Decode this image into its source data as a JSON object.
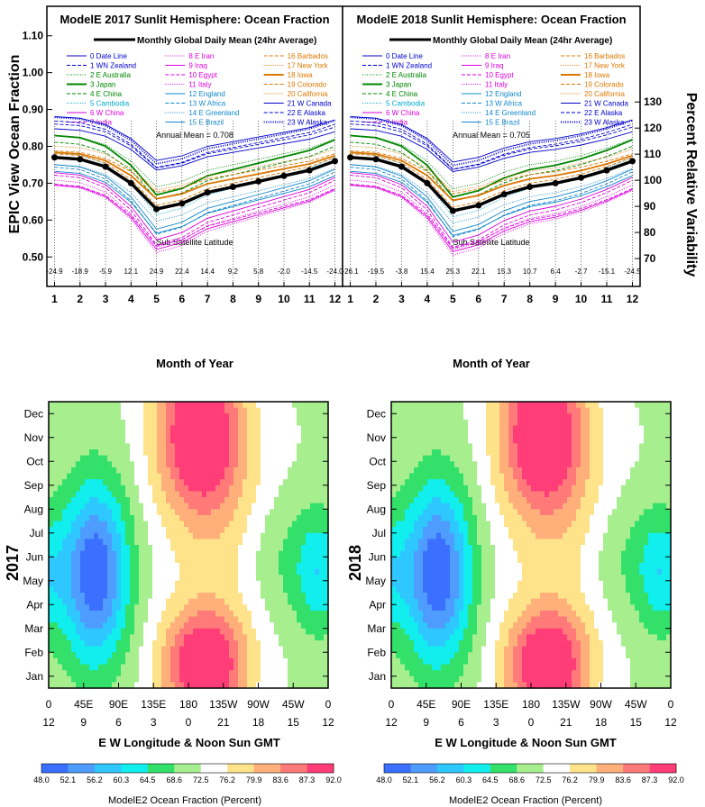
{
  "chart_data": [
    {
      "type": "line",
      "title": "ModelE 2017 Sunlit Hemisphere: Ocean Fraction",
      "subtitle": "Monthly Global Daily Mean (24hr Average)",
      "xlabel": "Month of Year",
      "ylabel": "EPIC View Ocean Fraction",
      "xlim": [
        0.7,
        12.3
      ],
      "ylim": [
        0.42,
        1.18
      ],
      "yticks": [
        "1.10",
        "1.00",
        "0.90",
        "0.80",
        "0.70",
        "0.60",
        "0.50"
      ],
      "xticks": [
        "1",
        "2",
        "3",
        "4",
        "5",
        "6",
        "7",
        "8",
        "9",
        "10",
        "11",
        "12"
      ],
      "annual_mean_label": "Annual Mean = 0.708",
      "subsat_label": "Sub Satellite Latitude",
      "subsat_values": [
        "-24.9",
        "-18.9",
        "-5.9",
        "12.1",
        "24.9",
        "22.4",
        "14.4",
        "9.2",
        "5.8",
        "-2.0",
        "-14.5",
        "-24.0"
      ],
      "global_mean": [
        0.77,
        0.765,
        0.745,
        0.7,
        0.63,
        0.645,
        0.675,
        0.69,
        0.705,
        0.72,
        0.735,
        0.76
      ]
    },
    {
      "type": "line",
      "title": "ModelE 2018 Sunlit Hemisphere: Ocean Fraction",
      "subtitle": "Monthly Global Daily Mean (24hr Average)",
      "xlabel": "Month of Year",
      "ylabel2": "Percent Relative Variability",
      "xlim": [
        0.7,
        12.3
      ],
      "y2ticks": [
        "130",
        "120",
        "110",
        "100",
        "90",
        "80",
        "70"
      ],
      "xticks": [
        "1",
        "2",
        "3",
        "4",
        "5",
        "6",
        "7",
        "8",
        "9",
        "10",
        "11",
        "12"
      ],
      "annual_mean_label": "Annual Mean = 0.705",
      "subsat_label": "Sub Satellite Latitude",
      "subsat_values": [
        "-26.1",
        "-19.5",
        "-3.8",
        "15.4",
        "25.3",
        "22.1",
        "15.3",
        "10.7",
        "6.4",
        "-2.7",
        "-15.1",
        "-24.5"
      ],
      "global_mean": [
        0.77,
        0.765,
        0.745,
        0.7,
        0.625,
        0.64,
        0.67,
        0.69,
        0.7,
        0.715,
        0.735,
        0.76
      ]
    },
    {
      "type": "heatmap",
      "year_label": "2017",
      "xlabel": "E W Longitude   &   Noon Sun GMT",
      "months": [
        "Jan",
        "Feb",
        "Mar",
        "Apr",
        "May",
        "Jun",
        "Jul",
        "Aug",
        "Sep",
        "Oct",
        "Nov",
        "Dec"
      ],
      "lon_ticks": [
        "0",
        "45E",
        "90E",
        "135E",
        "180",
        "135W",
        "90W",
        "45W",
        "0"
      ],
      "gmt_ticks": [
        "12",
        "9",
        "6",
        "3",
        "0",
        "21",
        "18",
        "15",
        "12"
      ],
      "colorbar_label": "ModelE2 Ocean Fraction (Percent)"
    },
    {
      "type": "heatmap",
      "year_label": "2018",
      "xlabel": "E W Longitude   &   Noon Sun GMT",
      "months": [
        "Jan",
        "Feb",
        "Mar",
        "Apr",
        "May",
        "Jun",
        "Jul",
        "Aug",
        "Sep",
        "Oct",
        "Nov",
        "Dec"
      ],
      "lon_ticks": [
        "0",
        "45E",
        "90E",
        "135E",
        "180",
        "135W",
        "90W",
        "45W",
        "0"
      ],
      "gmt_ticks": [
        "12",
        "9",
        "6",
        "3",
        "0",
        "21",
        "18",
        "15",
        "12"
      ],
      "colorbar_label": "ModelE2 Ocean Fraction (Percent)"
    }
  ],
  "legend": [
    {
      "label": "0 Date Line",
      "color": "#0000cc"
    },
    {
      "label": "1 WN Zealand",
      "color": "#0000cc"
    },
    {
      "label": "2 E Australia",
      "color": "#008800"
    },
    {
      "label": "3 Japan",
      "color": "#008800"
    },
    {
      "label": "4 E China",
      "color": "#008800"
    },
    {
      "label": "5 Cambodia",
      "color": "#00aacc"
    },
    {
      "label": "6 W China",
      "color": "#dd00dd"
    },
    {
      "label": "7 India",
      "color": "#dd00dd"
    },
    {
      "label": "8 E Iran",
      "color": "#dd00dd"
    },
    {
      "label": "9 Iraq",
      "color": "#dd00dd"
    },
    {
      "label": "10 Egypt",
      "color": "#dd00dd"
    },
    {
      "label": "11 Italy",
      "color": "#dd00dd"
    },
    {
      "label": "12 England",
      "color": "#1188cc"
    },
    {
      "label": "13 W Africa",
      "color": "#1188cc"
    },
    {
      "label": "14 E Greenland",
      "color": "#1188cc"
    },
    {
      "label": "15 E Brazil",
      "color": "#1188cc"
    },
    {
      "label": "16 Barbados",
      "color": "#dd7700"
    },
    {
      "label": "17 New York",
      "color": "#dd7700"
    },
    {
      "label": "18 Iowa",
      "color": "#dd7700"
    },
    {
      "label": "19 Colorado",
      "color": "#dd7700"
    },
    {
      "label": "20 California",
      "color": "#dd7700"
    },
    {
      "label": "21 W Canada",
      "color": "#0000cc"
    },
    {
      "label": "22 E Alaska",
      "color": "#0000cc"
    },
    {
      "label": "23 W Alaska",
      "color": "#0000cc"
    }
  ],
  "colorbar": {
    "ticks": [
      "48.0",
      "52.1",
      "56.2",
      "60.3",
      "64.5",
      "68.6",
      "72.5",
      "76.2",
      "79.9",
      "83.6",
      "87.3",
      "92.0"
    ],
    "colors": [
      "#3a6fff",
      "#4f9cff",
      "#2ec7ff",
      "#11eeee",
      "#32e06a",
      "#a6ee8e",
      "#ffffff",
      "#ffe38a",
      "#ffb07a",
      "#ff7a78",
      "#ff3d78",
      "#ff22ff"
    ]
  }
}
